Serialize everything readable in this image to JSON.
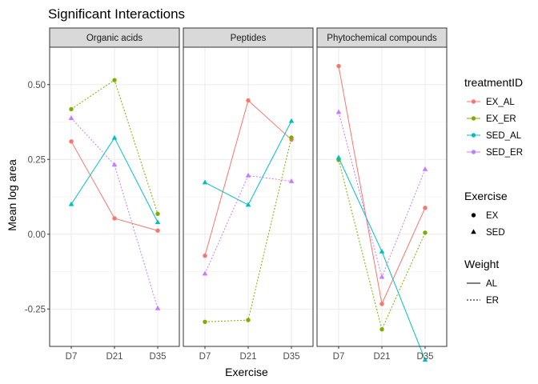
{
  "chart_data": {
    "type": "line",
    "title": "Significant Interactions",
    "xlabel": "Exercise",
    "ylabel": "Mean log area",
    "categories": [
      "D7",
      "D21",
      "D35"
    ],
    "ylim": [
      -0.375,
      0.625
    ],
    "yticks": [
      -0.25,
      0.0,
      0.25,
      0.5
    ],
    "ytick_labels": [
      "-0.25",
      "0.00",
      "0.25",
      "0.50"
    ],
    "grid": true,
    "legend_position": "right",
    "panels": [
      {
        "name": "Organic acids",
        "series": [
          {
            "name": "EX_AL",
            "values": [
              0.31,
              0.053,
              0.012
            ]
          },
          {
            "name": "EX_ER",
            "values": [
              0.418,
              0.515,
              0.068
            ]
          },
          {
            "name": "SED_AL",
            "values": [
              0.1,
              0.322,
              0.04
            ]
          },
          {
            "name": "SED_ER",
            "values": [
              0.388,
              0.232,
              -0.248
            ]
          }
        ]
      },
      {
        "name": "Peptides",
        "series": [
          {
            "name": "EX_AL",
            "values": [
              -0.072,
              0.447,
              0.316
            ]
          },
          {
            "name": "EX_ER",
            "values": [
              -0.293,
              -0.287,
              0.323
            ]
          },
          {
            "name": "SED_AL",
            "values": [
              0.173,
              0.098,
              0.378
            ]
          },
          {
            "name": "SED_ER",
            "values": [
              -0.132,
              0.196,
              0.177
            ]
          }
        ]
      },
      {
        "name": "Phytochemical compounds",
        "series": [
          {
            "name": "EX_AL",
            "values": [
              0.562,
              -0.233,
              0.088
            ]
          },
          {
            "name": "EX_ER",
            "values": [
              0.248,
              -0.318,
              0.005
            ]
          },
          {
            "name": "SED_AL",
            "values": [
              0.256,
              -0.058,
              -0.42
            ]
          },
          {
            "name": "SED_ER",
            "values": [
              0.408,
              -0.143,
              0.217
            ]
          }
        ]
      }
    ],
    "series_styles": [
      {
        "name": "EX_AL",
        "color": "#F8766D",
        "shape": "circle",
        "linetype": "solid"
      },
      {
        "name": "EX_ER",
        "color": "#7CAE00",
        "shape": "circle",
        "linetype": "dotted"
      },
      {
        "name": "SED_AL",
        "color": "#00BFC4",
        "shape": "triangle",
        "linetype": "solid"
      },
      {
        "name": "SED_ER",
        "color": "#C77CFF",
        "shape": "triangle",
        "linetype": "dotted"
      }
    ],
    "legends": [
      {
        "title": "treatmentID",
        "kind": "color",
        "entries": [
          "EX_AL",
          "EX_ER",
          "SED_AL",
          "SED_ER"
        ]
      },
      {
        "title": "Exercise",
        "kind": "shape",
        "entries": [
          "EX",
          "SED"
        ],
        "shapes": [
          "circle",
          "triangle"
        ]
      },
      {
        "title": "Weight",
        "kind": "linetype",
        "entries": [
          "AL",
          "ER"
        ],
        "linetypes": [
          "solid",
          "dotted"
        ]
      }
    ]
  }
}
